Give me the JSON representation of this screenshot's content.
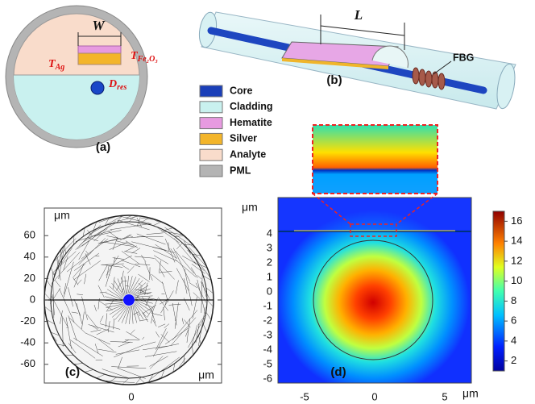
{
  "panel_a": {
    "label": "(a)",
    "width_symbol": "W",
    "t_ag": {
      "symbol": "T",
      "subscript": "Ag"
    },
    "t_fe": {
      "symbol": "T",
      "subscript": "Fe₂O₃"
    },
    "d_res": {
      "symbol": "D",
      "subscript": "res"
    }
  },
  "panel_b": {
    "label": "(b)",
    "length_symbol": "L",
    "grating": "FBG"
  },
  "legend": [
    "Core",
    "Cladding",
    "Hematite",
    "Silver",
    "Analyte",
    "PML"
  ],
  "panel_c": {
    "label": "(c)",
    "y_unit": "μm",
    "x_unit": "μm",
    "yticks": [
      60,
      40,
      20,
      0,
      -20,
      -40,
      -60
    ],
    "xticks": [
      0
    ]
  },
  "panel_d": {
    "label": "(d)",
    "y_unit": "μm",
    "x_unit": "μm",
    "yticks": [
      4,
      3,
      2,
      1,
      0,
      -1,
      -2,
      -3,
      -4,
      -5,
      -6
    ],
    "xticks": [
      -5,
      0,
      5
    ],
    "colorbar_ticks": [
      16,
      14,
      12,
      10,
      8,
      6,
      4,
      2
    ]
  }
}
